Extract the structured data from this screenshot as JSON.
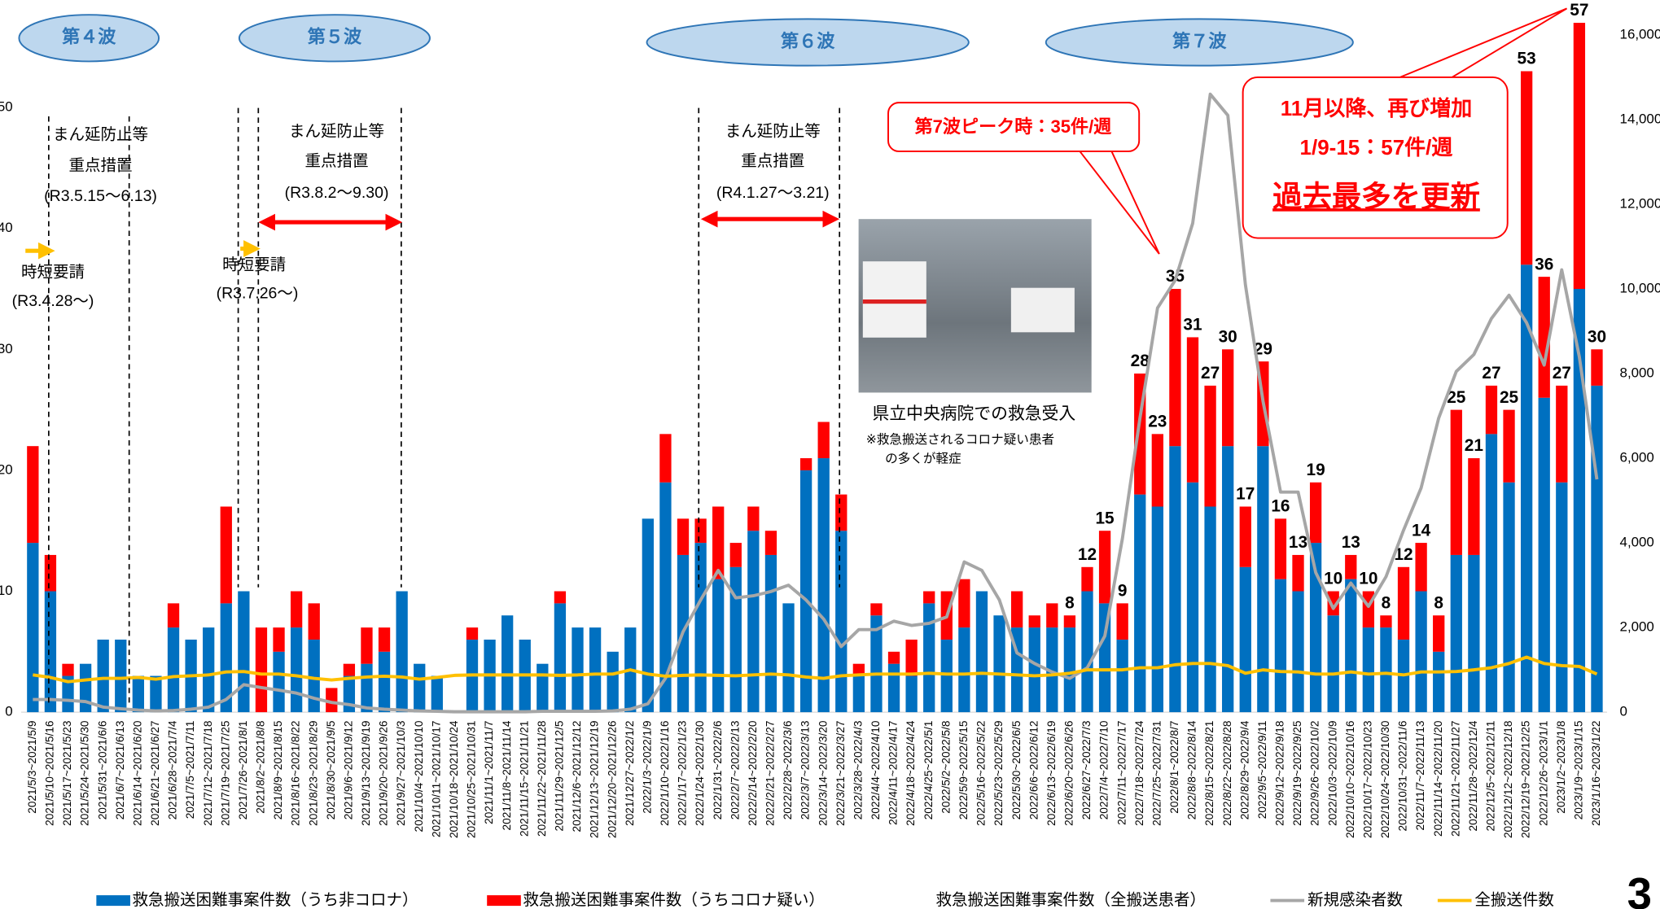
{
  "chart_data": {
    "type": "bar",
    "stacked": true,
    "categories": [
      "2021/5/3~2021/5/9",
      "2021/5/10~2021/5/16",
      "2021/5/17~2021/5/23",
      "2021/5/24~2021/5/30",
      "2021/5/31~2021/6/6",
      "2021/6/7~2021/6/13",
      "2021/6/14~2021/6/20",
      "2021/6/21~2021/6/27",
      "2021/6/28~2021/7/4",
      "2021/7/5~2021/7/11",
      "2021/7/12~2021/7/18",
      "2021/7/19~2021/7/25",
      "2021/7/26~2021/8/1",
      "2021/8/2~2021/8/8",
      "2021/8/9~2021/8/15",
      "2021/8/16~2021/8/22",
      "2021/8/23~2021/8/29",
      "2021/8/30~2021/9/5",
      "2021/9/6~2021/9/12",
      "2021/9/13~2021/9/19",
      "2021/9/20~2021/9/26",
      "2021/9/27~2021/10/3",
      "2021/10/4~2021/10/10",
      "2021/10/11~2021/10/17",
      "2021/10/18~2021/10/24",
      "2021/10/25~2021/10/31",
      "2021/11/1~2021/11/7",
      "2021/11/8~2021/11/14",
      "2021/11/15~2021/11/21",
      "2021/11/22~2021/11/28",
      "2021/11/29~2021/12/5",
      "2021/12/6~2021/12/12",
      "2021/12/13~2021/12/19",
      "2021/12/20~2021/12/26",
      "2021/12/27~2022/1/2",
      "2022/1/3~2022/1/9",
      "2022/1/10~2022/1/16",
      "2022/1/17~2022/1/23",
      "2022/1/24~2022/1/30",
      "2022/1/31~2022/2/6",
      "2022/2/7~2022/2/13",
      "2022/2/14~2022/2/20",
      "2022/2/21~2022/2/27",
      "2022/2/28~2022/3/6",
      "2022/3/7~2022/3/13",
      "2022/3/14~2022/3/20",
      "2022/3/21~2022/3/27",
      "2022/3/28~2022/4/3",
      "2022/4/4~2022/4/10",
      "2022/4/11~2022/4/17",
      "2022/4/18~2022/4/24",
      "2022/4/25~2022/5/1",
      "2022/5/2~2022/5/8",
      "2022/5/9~2022/5/15",
      "2022/5/16~2022/5/22",
      "2022/5/23~2022/5/29",
      "2022/5/30~2022/6/5",
      "2022/6/6~2022/6/12",
      "2022/6/13~2022/6/19",
      "2022/6/20~2022/6/26",
      "2022/6/27~2022/7/3",
      "2022/7/4~2022/7/10",
      "2022/7/11~2022/7/17",
      "2022/7/18~2022/7/24",
      "2022/7/25~2022/7/31",
      "2022/8/1~2022/8/7",
      "2022/8/8~2022/8/14",
      "2022/8/15~2022/8/21",
      "2022/8/22~2022/8/28",
      "2022/8/29~2022/9/4",
      "2022/9/5~2022/9/11",
      "2022/9/12~2022/9/18",
      "2022/9/19~2022/9/25",
      "2022/9/26~2022/10/2",
      "2022/10/3~2022/10/9",
      "2022/10/10~2022/10/16",
      "2022/10/17~2022/10/23",
      "2022/10/24~2022/10/30",
      "2022/10/31~2022/11/6",
      "2022/11/7~2022/11/13",
      "2022/11/14~2022/11/20",
      "2022/11/21~2022/11/27",
      "2022/11/28~2022/12/4",
      "2022/12/5~2022/12/11",
      "2022/12/12~2022/12/18",
      "2022/12/19~2022/12/25",
      "2022/12/26~2023/1/1",
      "2023/1/2~2023/1/8",
      "2023/1/9~2023/1/15",
      "2023/1/16~2023/1/22"
    ],
    "series": [
      {
        "name": "救急搬送困難事案件数（うち非コロナ）",
        "color": "#0070c0",
        "values": [
          14,
          10,
          3,
          4,
          6,
          6,
          3,
          3,
          7,
          6,
          7,
          9,
          10,
          0,
          5,
          7,
          6,
          0,
          3,
          4,
          5,
          10,
          4,
          3,
          0,
          6,
          6,
          8,
          6,
          4,
          9,
          7,
          7,
          5,
          7,
          16,
          19,
          13,
          14,
          11,
          12,
          15,
          13,
          9,
          20,
          21,
          15,
          3,
          8,
          4,
          3,
          9,
          6,
          7,
          10,
          8,
          7,
          7,
          7,
          7,
          10,
          9,
          6,
          18,
          17,
          22,
          19,
          17,
          22,
          12,
          22,
          11,
          10,
          14,
          8,
          11,
          7,
          7,
          6,
          10,
          5,
          13,
          13,
          23,
          19,
          37,
          26,
          19,
          35,
          27
        ]
      },
      {
        "name": "救急搬送困難事案件数（うちコロナ疑い）",
        "color": "#ff0000",
        "values": [
          8,
          3,
          1,
          0,
          0,
          0,
          0,
          0,
          2,
          0,
          0,
          8,
          0,
          7,
          2,
          3,
          3,
          2,
          1,
          3,
          2,
          0,
          0,
          0,
          0,
          1,
          0,
          0,
          0,
          0,
          1,
          0,
          0,
          0,
          0,
          0,
          4,
          3,
          2,
          6,
          2,
          2,
          2,
          0,
          1,
          3,
          3,
          1,
          1,
          1,
          3,
          1,
          4,
          4,
          0,
          0,
          3,
          1,
          2,
          1,
          2,
          6,
          3,
          10,
          6,
          13,
          12,
          10,
          8,
          5,
          7,
          5,
          3,
          5,
          2,
          2,
          3,
          1,
          6,
          4,
          3,
          12,
          8,
          4,
          6,
          16,
          10,
          8,
          22,
          3
        ]
      },
      {
        "name": "救急搬送困難事案件数（全搬送患者）",
        "type": "label",
        "color": "#ff0000",
        "values": [
          null,
          null,
          null,
          null,
          null,
          null,
          null,
          null,
          null,
          null,
          null,
          null,
          null,
          null,
          null,
          null,
          null,
          null,
          null,
          null,
          null,
          null,
          null,
          null,
          null,
          null,
          null,
          null,
          null,
          null,
          null,
          null,
          null,
          null,
          null,
          null,
          null,
          null,
          null,
          null,
          null,
          null,
          null,
          null,
          null,
          null,
          null,
          null,
          null,
          null,
          null,
          null,
          null,
          null,
          null,
          null,
          null,
          null,
          null,
          8,
          12,
          15,
          9,
          28,
          23,
          35,
          31,
          27,
          30,
          17,
          29,
          16,
          13,
          19,
          10,
          13,
          10,
          8,
          12,
          14,
          8,
          25,
          21,
          27,
          25,
          53,
          36,
          27,
          57,
          30
        ]
      },
      {
        "name": "新規感染者数",
        "type": "line",
        "axis": "y2",
        "color": "#a6a6a6",
        "values": [
          300,
          300,
          280,
          250,
          120,
          80,
          50,
          30,
          40,
          70,
          120,
          300,
          650,
          580,
          520,
          450,
          330,
          230,
          180,
          100,
          70,
          50,
          30,
          20,
          10,
          10,
          10,
          10,
          10,
          20,
          20,
          20,
          20,
          30,
          70,
          200,
          800,
          1900,
          2650,
          3350,
          2700,
          2750,
          2850,
          3000,
          2650,
          2200,
          1550,
          1950,
          1950,
          2150,
          2050,
          2100,
          2250,
          3550,
          3350,
          2650,
          1400,
          1150,
          950,
          800,
          1050,
          1800,
          4100,
          6950,
          9550,
          10200,
          11550,
          14600,
          14100,
          10100,
          7350,
          5200,
          5200,
          3300,
          2450,
          3050,
          2500,
          3200,
          4300,
          5300,
          6950,
          8050,
          8450,
          9300,
          9850,
          9200,
          8200,
          10450,
          8400,
          5500
        ]
      },
      {
        "name": "全搬送件数",
        "type": "line",
        "axis": "y2",
        "color": "#ffc000",
        "values": [
          880,
          820,
          720,
          760,
          800,
          800,
          820,
          780,
          840,
          860,
          880,
          950,
          960,
          900,
          900,
          860,
          800,
          760,
          800,
          830,
          850,
          830,
          780,
          820,
          870,
          880,
          880,
          880,
          880,
          880,
          870,
          880,
          900,
          900,
          1000,
          900,
          850,
          870,
          880,
          870,
          860,
          880,
          900,
          880,
          830,
          800,
          860,
          880,
          900,
          900,
          900,
          920,
          900,
          900,
          920,
          900,
          880,
          860,
          880,
          920,
          1000,
          1000,
          1000,
          1050,
          1050,
          1120,
          1150,
          1150,
          1100,
          920,
          1000,
          960,
          950,
          900,
          900,
          950,
          900,
          920,
          880,
          950,
          950,
          960,
          1000,
          1050,
          1150,
          1300,
          1150,
          1100,
          1080,
          900
        ]
      }
    ],
    "ylim": [
      0,
      56
    ],
    "yticks": [
      0,
      10,
      20,
      30,
      40,
      50
    ],
    "y2lim": [
      0,
      16000
    ],
    "y2ticks": [
      0,
      {
        "value": 2000,
        "label": "2,000"
      },
      {
        "value": 4000,
        "label": "4,000"
      },
      {
        "value": 6000,
        "label": "6,000"
      },
      {
        "value": 8000,
        "label": "8,000"
      },
      {
        "value": 10000,
        "label": "10,000"
      },
      {
        "value": 12000,
        "label": "12,000"
      },
      {
        "value": 14000,
        "label": "14,000"
      },
      {
        "value": 16000,
        "label": "16,000"
      }
    ],
    "grid": false,
    "legend": "bottom",
    "annotations": [
      "第４波",
      "第５波",
      "第６波",
      "第７波",
      "まん延防止等",
      "重点措置",
      "(R3.5.15〜6.13)",
      "まん延防止等",
      "重点措置",
      "(R3.8.2〜9.30)",
      "まん延防止等",
      "重点措置",
      "(R4.1.27〜3.21)",
      "時短要請",
      "(R3.4.28〜)",
      "時短要請",
      "(R3.7.26〜)",
      "県立中央病院での救急受入",
      "※救急搬送されるコロナ疑い患者",
      "の多くが軽症",
      "第7波ピーク時：35件/週",
      "11月以降、再び増加",
      "1/9-15：57件/週",
      "過去最多を更新"
    ],
    "page_number": "3"
  }
}
